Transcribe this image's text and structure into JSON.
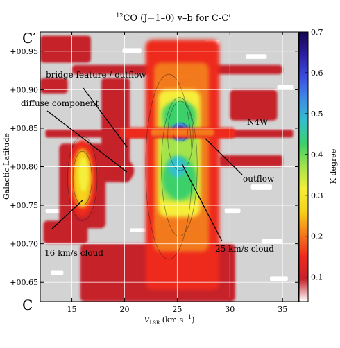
{
  "chart_data": {
    "type": "heatmap",
    "title": "12CO (J=1-0) v-b for C-C'",
    "title_parts": {
      "sup": "12",
      "main": "CO (J=1–0) v–b for C-C'"
    },
    "xlabel": "V_LSR (km s^-1)",
    "xlabel_parts": {
      "base": "V",
      "sub": "LSR",
      "unit_open": " (km s",
      "unit_sup": "−1",
      "unit_close": ")"
    },
    "ylabel": "Galactic Latitude",
    "colorbar_label": "K degree",
    "xlim": [
      12,
      36.5
    ],
    "ylim": [
      0.625,
      0.975
    ],
    "x_ticks": [
      15,
      20,
      25,
      30,
      35
    ],
    "x_tick_labels": [
      "15",
      "20",
      "25",
      "30",
      "35"
    ],
    "y_ticks": [
      0.65,
      0.7,
      0.75,
      0.8,
      0.85,
      0.9,
      0.95
    ],
    "y_tick_labels": [
      "+00.65",
      "+00.70",
      "+00.75",
      "+00.80",
      "+00.85",
      "+00.90",
      "+00.95"
    ],
    "colorbar_range": [
      0.04,
      0.7
    ],
    "colorbar_ticks": [
      0.1,
      0.2,
      0.3,
      0.4,
      0.5,
      0.6,
      0.7
    ],
    "colorbar_tick_labels": [
      "0.1",
      "0.2",
      "0.3",
      "0.4",
      "0.5",
      "0.6",
      "0.7"
    ],
    "colormap_stops": [
      "#ffffff",
      "#c5222b",
      "#ee2a1f",
      "#f37a1d",
      "#f5d21a",
      "#f5ee3a",
      "#a4e34b",
      "#3dd06a",
      "#34c0c8",
      "#3e8de6",
      "#3b4de0",
      "#2b1ea0",
      "#16054f"
    ],
    "grid": true,
    "end_labels": {
      "top": "C′",
      "bottom": "C"
    },
    "components": [
      {
        "name": "16 km/s cloud",
        "v": 16.0,
        "b": 0.785,
        "peak_K": 0.28
      },
      {
        "name": "25 km/s cloud",
        "v": 25.0,
        "b": 0.8,
        "peak_K": 0.52
      },
      {
        "name": "N4W",
        "v": 25.3,
        "b": 0.845,
        "peak_K": 0.7
      },
      {
        "name": "outflow",
        "v": 28.0,
        "b": 0.84,
        "peak_K": 0.18
      },
      {
        "name": "bridge feature / outflow",
        "v": 19.5,
        "b": 0.86,
        "peak_K": 0.16
      },
      {
        "name": "diffuse component",
        "v": 20.0,
        "b": 0.795,
        "peak_K": 0.14
      }
    ],
    "annotations": [
      {
        "text": "bridge feature / outflow",
        "from": [
          16.4,
          0.905
        ],
        "to": [
          19.8,
          0.85
        ]
      },
      {
        "text": "diffuse component",
        "from": [
          17.5,
          0.86
        ],
        "to": [
          19.9,
          0.79
        ]
      },
      {
        "text": "N4W",
        "from": null,
        "to": null
      },
      {
        "text": "outflow",
        "from": [
          31.0,
          0.792
        ],
        "to": [
          28.2,
          0.838
        ]
      },
      {
        "text": "16 km/s cloud",
        "from": [
          13.8,
          0.708
        ],
        "to": [
          16.2,
          0.77
        ]
      },
      {
        "text": "25 km/s cloud",
        "from": [
          28.0,
          0.693
        ],
        "to": [
          25.3,
          0.818
        ]
      }
    ],
    "annotation_labels": {
      "bridge": "bridge feature / outflow",
      "diffuse": "diffuse component",
      "n4w": "N4W",
      "outflow": "outflow",
      "cloud16": "16 km/s cloud",
      "cloud25": "25 km/s cloud"
    }
  }
}
